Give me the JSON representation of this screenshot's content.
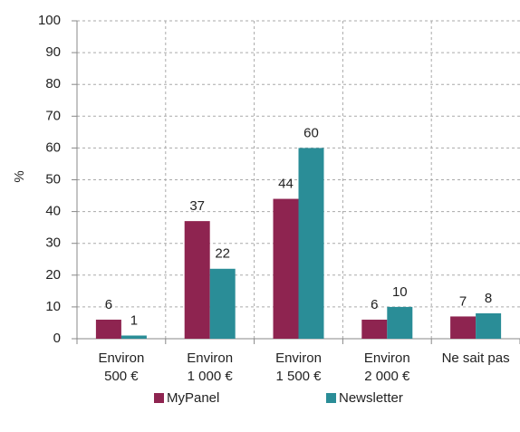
{
  "chart_data": {
    "type": "bar",
    "y_label": "%",
    "categories": [
      "Environ 500 €",
      "Environ 1 000 €",
      "Environ 1 500 €",
      "Environ 2 000 €",
      "Ne sait pas"
    ],
    "series": [
      {
        "name": "MyPanel",
        "color": "#8e2450",
        "values": [
          6,
          37,
          44,
          6,
          7
        ]
      },
      {
        "name": "Newsletter",
        "color": "#2a8d97",
        "values": [
          1,
          22,
          60,
          10,
          8
        ]
      }
    ],
    "ylim": [
      0,
      100
    ],
    "yticks": [
      0,
      10,
      20,
      30,
      40,
      50,
      60,
      70,
      80,
      90,
      100
    ],
    "grid": true
  }
}
